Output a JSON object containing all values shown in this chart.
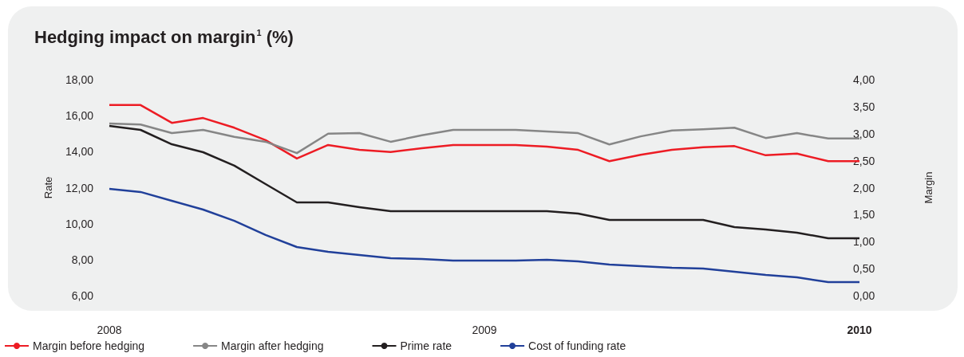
{
  "chart_data": {
    "type": "line",
    "title": "Hedging impact on margin$^{1}$ (%)",
    "ylabel": "Rate",
    "y2label": "Margin",
    "categories": [
      "2008",
      null,
      null,
      null,
      null,
      null,
      null,
      null,
      null,
      null,
      null,
      null,
      "2009",
      null,
      null,
      null,
      null,
      null,
      null,
      null,
      null,
      null,
      null,
      null,
      "2010"
    ],
    "ylim": [
      6,
      18
    ],
    "yticks": [
      {
        "value": 6,
        "label": "6,00"
      },
      {
        "value": 8,
        "label": "8,00"
      },
      {
        "value": 10,
        "label": "10,00"
      },
      {
        "value": 12,
        "label": "12,00"
      },
      {
        "value": 14,
        "label": "14,00"
      },
      {
        "value": 16,
        "label": "16,00"
      },
      {
        "value": 18,
        "label": "18,00"
      }
    ],
    "y2lim": [
      0,
      4
    ],
    "y2ticks": [
      {
        "value": 0,
        "label": "0,00"
      },
      {
        "value": 0.5,
        "label": "0,50"
      },
      {
        "value": 1,
        "label": "1,00"
      },
      {
        "value": 1.5,
        "label": "1,50"
      },
      {
        "value": 2,
        "label": "2,00"
      },
      {
        "value": 2.5,
        "label": "2,50"
      },
      {
        "value": 3,
        "label": "3,00"
      },
      {
        "value": 3.5,
        "label": "3,50"
      },
      {
        "value": 4,
        "label": "4,00"
      }
    ],
    "series": [
      {
        "name": "Margin before hedging",
        "color": "#ed1c24",
        "axis": "y2",
        "values": [
          3.53,
          3.53,
          3.2,
          3.29,
          3.11,
          2.88,
          2.54,
          2.79,
          2.7,
          2.66,
          2.73,
          2.79,
          2.79,
          2.79,
          2.76,
          2.7,
          2.49,
          2.61,
          2.7,
          2.75,
          2.77,
          2.6,
          2.63,
          2.49,
          2.49
        ]
      },
      {
        "name": "Margin after hedging",
        "color": "#868686",
        "axis": "y2",
        "values": [
          3.19,
          3.17,
          3.01,
          3.07,
          2.94,
          2.85,
          2.64,
          3.0,
          3.01,
          2.85,
          2.97,
          3.07,
          3.07,
          3.07,
          3.04,
          3.01,
          2.8,
          2.95,
          3.06,
          3.08,
          3.11,
          2.92,
          3.01,
          2.91,
          2.91
        ]
      },
      {
        "name": "Prime rate",
        "color": "#231f20",
        "values": [
          15.43,
          15.21,
          14.41,
          13.97,
          13.22,
          12.2,
          11.18,
          11.18,
          10.92,
          10.69,
          10.69,
          10.69,
          10.69,
          10.69,
          10.69,
          10.56,
          10.21,
          10.21,
          10.21,
          10.21,
          9.81,
          9.68,
          9.5,
          9.19,
          9.19
        ]
      },
      {
        "name": "Cost of funding rate",
        "color": "#21409a",
        "values": [
          11.93,
          11.76,
          11.27,
          10.78,
          10.16,
          9.37,
          8.7,
          8.44,
          8.26,
          8.08,
          8.04,
          7.95,
          7.95,
          7.95,
          7.99,
          7.9,
          7.73,
          7.64,
          7.55,
          7.51,
          7.33,
          7.15,
          7.02,
          6.75,
          6.75
        ]
      }
    ],
    "grid": false,
    "legend": "bottom left",
    "line_style": "solid"
  }
}
